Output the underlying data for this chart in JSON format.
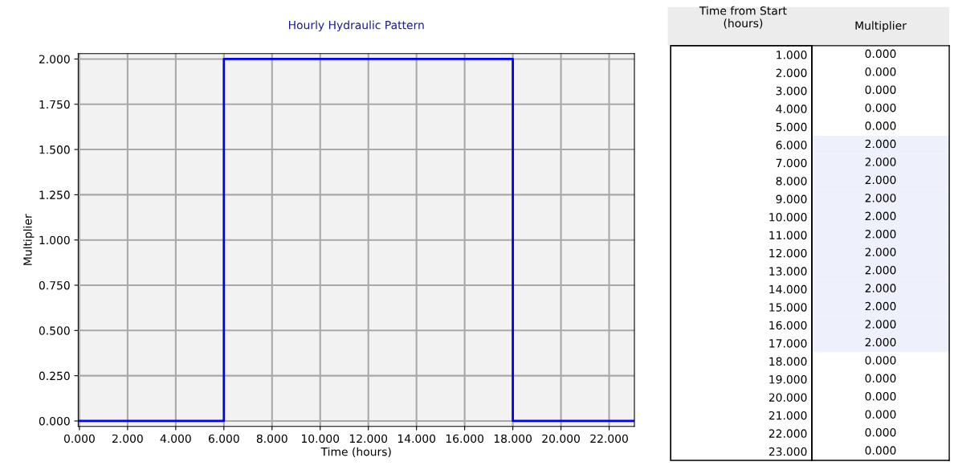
{
  "chart_data": [
    {
      "type": "step",
      "title": "Hourly Hydraulic Pattern",
      "xlabel": "Time (hours)",
      "ylabel": "Multiplier",
      "x": [
        0,
        1,
        2,
        3,
        4,
        5,
        6,
        7,
        8,
        9,
        10,
        11,
        12,
        13,
        14,
        15,
        16,
        17,
        18,
        19,
        20,
        21,
        22,
        23
      ],
      "series": [
        {
          "color": "#0000ff",
          "values": [
            0,
            0,
            0,
            0,
            0,
            0,
            2,
            2,
            2,
            2,
            2,
            2,
            2,
            2,
            2,
            2,
            2,
            2,
            0,
            0,
            0,
            0,
            0,
            0
          ]
        }
      ],
      "xlim": [
        -0.05,
        23.05
      ],
      "ylim": [
        -0.03,
        2.03
      ],
      "xticks": [
        {
          "value": 0,
          "label": "0.000"
        },
        {
          "value": 2,
          "label": "2.000"
        },
        {
          "value": 4,
          "label": "4.000"
        },
        {
          "value": 6,
          "label": "6.000"
        },
        {
          "value": 8,
          "label": "8.000"
        },
        {
          "value": 10,
          "label": "10.000"
        },
        {
          "value": 12,
          "label": "12.000"
        },
        {
          "value": 14,
          "label": "14.000"
        },
        {
          "value": 16,
          "label": "16.000"
        },
        {
          "value": 18,
          "label": "18.000"
        },
        {
          "value": 20,
          "label": "20.000"
        },
        {
          "value": 22,
          "label": "22.000"
        }
      ],
      "yticks": [
        {
          "value": 0,
          "label": "0.000"
        },
        {
          "value": 0.25,
          "label": "0.250"
        },
        {
          "value": 0.5,
          "label": "0.500"
        },
        {
          "value": 0.75,
          "label": "0.750"
        },
        {
          "value": 1,
          "label": "1.000"
        },
        {
          "value": 1.25,
          "label": "1.250"
        },
        {
          "value": 1.5,
          "label": "1.500"
        },
        {
          "value": 1.75,
          "label": "1.750"
        },
        {
          "value": 2,
          "label": "2.000"
        }
      ],
      "grid": true,
      "line_style": "solid",
      "marker": "none"
    },
    {
      "type": "heatmap",
      "ylabel": "Time from Start\n(hours)",
      "categories": [
        "Multiplier"
      ],
      "y_categories": [
        "1.000",
        "2.000",
        "3.000",
        "4.000",
        "5.000",
        "6.000",
        "7.000",
        "8.000",
        "9.000",
        "10.000",
        "11.000",
        "12.000",
        "13.000",
        "14.000",
        "15.000",
        "16.000",
        "17.000",
        "18.000",
        "19.000",
        "20.000",
        "21.000",
        "22.000",
        "23.000"
      ],
      "cells": [
        [
          0
        ],
        [
          0
        ],
        [
          0
        ],
        [
          0
        ],
        [
          0
        ],
        [
          2
        ],
        [
          2
        ],
        [
          2
        ],
        [
          2
        ],
        [
          2
        ],
        [
          2
        ],
        [
          2
        ],
        [
          2
        ],
        [
          2
        ],
        [
          2
        ],
        [
          2
        ],
        [
          2
        ],
        [
          0
        ],
        [
          0
        ],
        [
          0
        ],
        [
          0
        ],
        [
          0
        ],
        [
          0
        ]
      ],
      "cell_labels": [
        [
          "0.000"
        ],
        [
          "0.000"
        ],
        [
          "0.000"
        ],
        [
          "0.000"
        ],
        [
          "0.000"
        ],
        [
          "2.000"
        ],
        [
          "2.000"
        ],
        [
          "2.000"
        ],
        [
          "2.000"
        ],
        [
          "2.000"
        ],
        [
          "2.000"
        ],
        [
          "2.000"
        ],
        [
          "2.000"
        ],
        [
          "2.000"
        ],
        [
          "2.000"
        ],
        [
          "2.000"
        ],
        [
          "2.000"
        ],
        [
          "0.000"
        ],
        [
          "0.000"
        ],
        [
          "0.000"
        ],
        [
          "0.000"
        ],
        [
          "0.000"
        ],
        [
          "0.000"
        ]
      ]
    }
  ]
}
